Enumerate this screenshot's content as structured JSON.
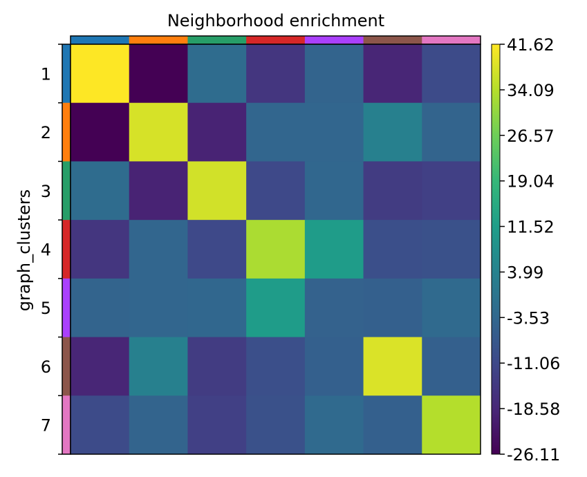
{
  "chart_data": {
    "type": "heatmap",
    "title": "Neighborhood enrichment",
    "ylabel": "graph_clusters",
    "xlabel": "",
    "categories": [
      "1",
      "2",
      "3",
      "4",
      "5",
      "6",
      "7"
    ],
    "category_colors": [
      "#1f77b4",
      "#ff7f0e",
      "#279e68",
      "#d62728",
      "#aa40fc",
      "#8c564b",
      "#e377c2"
    ],
    "values": [
      [
        41.62,
        -26.11,
        -2.5,
        -15.5,
        -4.5,
        -19.0,
        -10.5
      ],
      [
        -26.11,
        37.5,
        -19.5,
        -4.0,
        -4.0,
        3.5,
        -4.5
      ],
      [
        -2.5,
        -19.5,
        37.0,
        -11.0,
        -3.8,
        -14.0,
        -13.0
      ],
      [
        -15.5,
        -4.0,
        -11.0,
        33.0,
        11.0,
        -9.5,
        -9.0
      ],
      [
        -4.5,
        -4.0,
        -3.8,
        11.0,
        -5.0,
        -5.5,
        -3.0
      ],
      [
        -19.0,
        3.5,
        -14.0,
        -9.5,
        -5.5,
        38.0,
        -5.5
      ],
      [
        -10.5,
        -4.5,
        -13.0,
        -9.0,
        -3.0,
        -5.5,
        34.0
      ]
    ],
    "colormap": "viridis",
    "zlim": [
      -26.11,
      41.62
    ],
    "colorbar_ticks": [
      "41.62",
      "34.09",
      "26.57",
      "19.04",
      "11.52",
      "3.99",
      "-3.53",
      "-11.06",
      "-18.58",
      "-26.11"
    ],
    "colorbar_tick_values": [
      41.62,
      34.09,
      26.57,
      19.04,
      11.52,
      3.99,
      -3.53,
      -11.06,
      -18.58,
      -26.11
    ],
    "grid": false
  }
}
